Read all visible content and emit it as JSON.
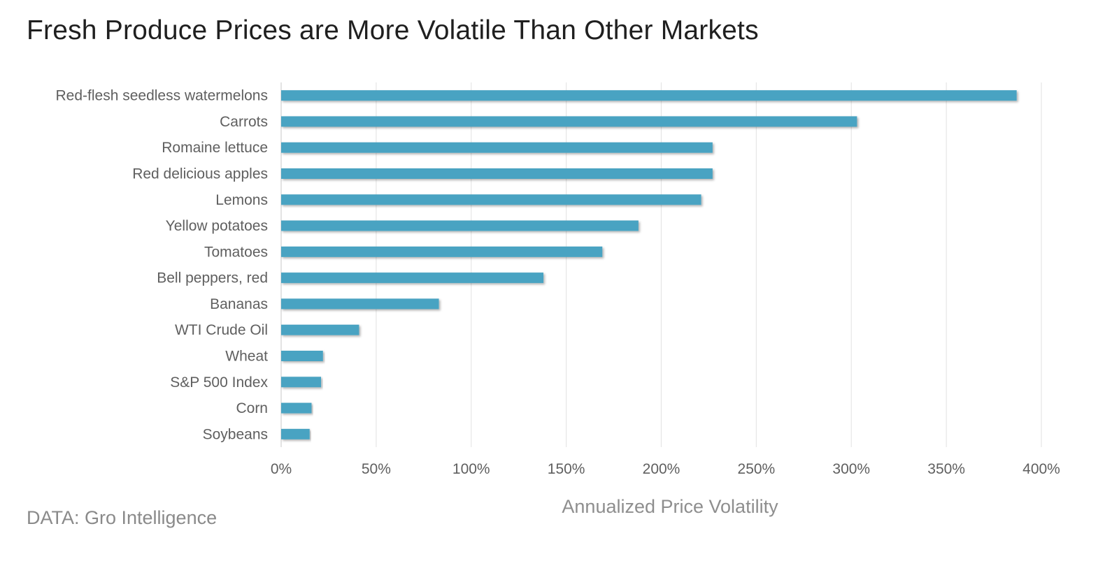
{
  "chart_data": {
    "type": "bar",
    "orientation": "horizontal",
    "title": "Fresh Produce Prices are More Volatile Than Other Markets",
    "xlabel": "Annualized Price Volatility",
    "ylabel": "",
    "source": "DATA: Gro Intelligence",
    "categories": [
      "Red-flesh seedless watermelons",
      "Carrots",
      "Romaine lettuce",
      "Red delicious apples",
      "Lemons",
      "Yellow potatoes",
      "Tomatoes",
      "Bell peppers, red",
      "Bananas",
      "WTI Crude Oil",
      "Wheat",
      "S&P 500 Index",
      "Corn",
      "Soybeans"
    ],
    "values": [
      387,
      303,
      227,
      227,
      221,
      188,
      169,
      138,
      83,
      41,
      22,
      21,
      16,
      15
    ],
    "unit": "%",
    "xlim": [
      0,
      400
    ],
    "xticks": [
      0,
      50,
      100,
      150,
      200,
      250,
      300,
      350,
      400
    ],
    "xtick_labels": [
      "0%",
      "50%",
      "100%",
      "150%",
      "200%",
      "250%",
      "300%",
      "350%",
      "400%"
    ],
    "grid": "vertical",
    "legend": "none",
    "bar_color": "#4aa3c2"
  }
}
